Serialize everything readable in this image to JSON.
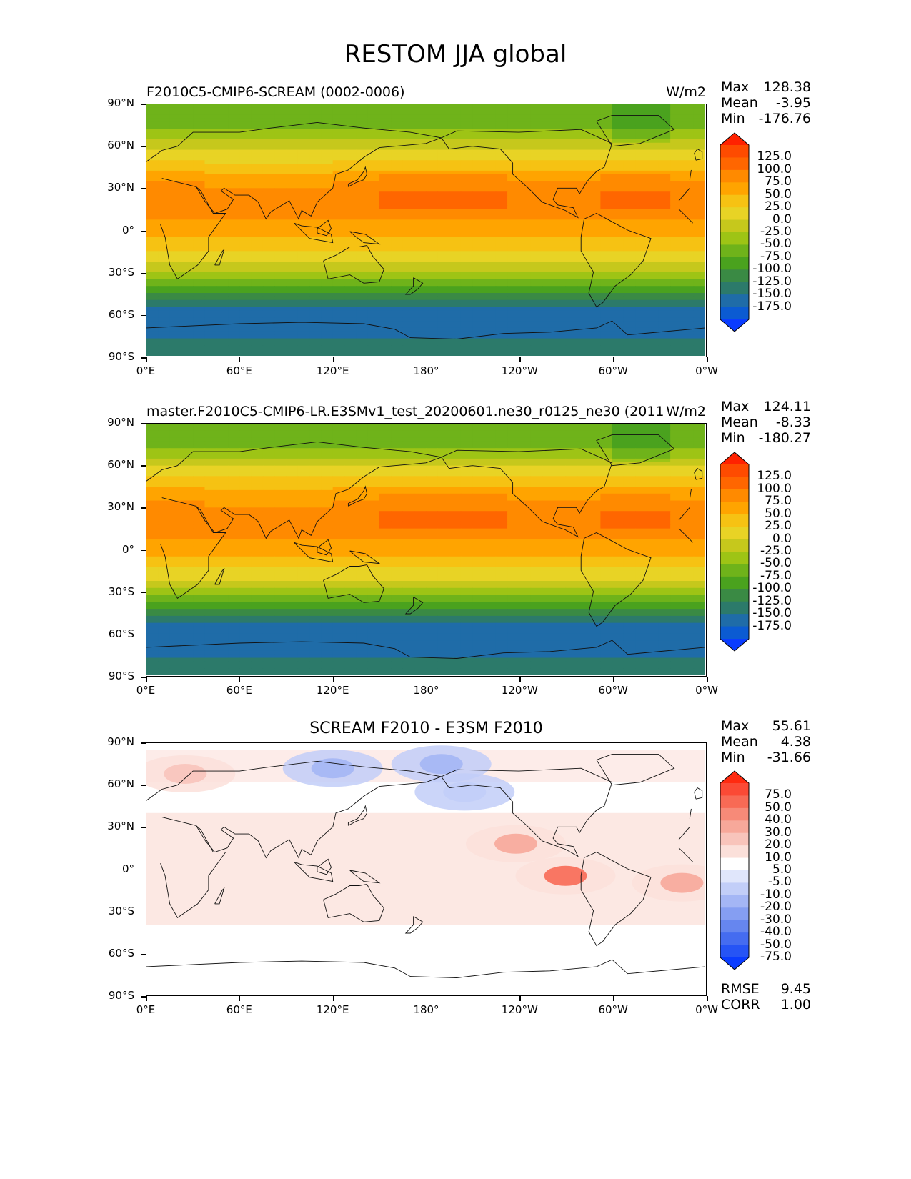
{
  "figure": {
    "title": "RESTOM JJA global"
  },
  "chart_data": [
    {
      "type": "heatmap",
      "title": "F2010C5-CMIP6-SCREAM (0002-0006)",
      "units": "W/m2",
      "stats": {
        "max": "128.38",
        "mean": "-3.95",
        "min": "-176.76"
      },
      "xticks": [
        "0°E",
        "60°E",
        "120°E",
        "180°",
        "120°W",
        "60°W",
        "0°W"
      ],
      "yticks": [
        "90°N",
        "60°N",
        "30°N",
        "0°",
        "30°S",
        "60°S",
        "90°S"
      ],
      "xlim": [
        0,
        360
      ],
      "ylim": [
        -90,
        90
      ],
      "colorbar": {
        "extend": "both",
        "levels": [
          "125.0",
          "100.0",
          "75.0",
          "50.0",
          "25.0",
          "0.0",
          "-25.0",
          "-50.0",
          "-75.0",
          "-100.0",
          "-125.0",
          "-150.0",
          "-175.0"
        ],
        "colors": [
          "#ff2200",
          "#fe4b00",
          "#ff6600",
          "#ff8a00",
          "#ffa400",
          "#f6c213",
          "#e8d325",
          "#c6c81c",
          "#9ec415",
          "#6fb31a",
          "#4aa21e",
          "#3a8a44",
          "#2c7a6a",
          "#1f6ca8",
          "#0b5bd2",
          "#0a3cff"
        ]
      },
      "zonal_profile": {
        "lat": [
          90,
          75,
          60,
          50,
          40,
          30,
          20,
          10,
          0,
          -10,
          -20,
          -30,
          -40,
          -50,
          -60,
          -70,
          -80,
          -90
        ],
        "value": [
          -75,
          -55,
          -10,
          25,
          60,
          85,
          95,
          80,
          60,
          40,
          10,
          -30,
          -80,
          -130,
          -165,
          -170,
          -140,
          -130
        ]
      },
      "lowest_level_name": "",
      "ocean_colored": true
    },
    {
      "type": "heatmap",
      "title": "master.F2010C5-CMIP6-LR.E3SMv1_test_20200601.ne30_r0125_ne30 (2011)",
      "units": "W/m2",
      "stats": {
        "max": "124.11",
        "mean": "-8.33",
        "min": "-180.27"
      },
      "xticks": [
        "0°E",
        "60°E",
        "120°E",
        "180°",
        "120°W",
        "60°W",
        "0°W"
      ],
      "yticks": [
        "90°N",
        "60°N",
        "30°N",
        "0°",
        "30°S",
        "60°S",
        "90°S"
      ],
      "xlim": [
        0,
        360
      ],
      "ylim": [
        -90,
        90
      ],
      "colorbar": {
        "extend": "both",
        "levels": [
          "125.0",
          "100.0",
          "75.0",
          "50.0",
          "25.0",
          "0.0",
          "-25.0",
          "-50.0",
          "-75.0",
          "-100.0",
          "-125.0",
          "-150.0",
          "-175.0"
        ],
        "colors": [
          "#ff2200",
          "#fe4b00",
          "#ff6600",
          "#ff8a00",
          "#ffa400",
          "#f6c213",
          "#e8d325",
          "#c6c81c",
          "#9ec415",
          "#6fb31a",
          "#4aa21e",
          "#3a8a44",
          "#2c7a6a",
          "#1f6ca8",
          "#0b5bd2",
          "#0a3cff"
        ]
      },
      "zonal_profile": {
        "lat": [
          90,
          75,
          60,
          50,
          40,
          30,
          20,
          10,
          0,
          -10,
          -20,
          -30,
          -40,
          -50,
          -60,
          -70,
          -80,
          -90
        ],
        "value": [
          -70,
          -60,
          -5,
          35,
          65,
          85,
          95,
          80,
          60,
          35,
          5,
          -35,
          -85,
          -140,
          -172,
          -170,
          -140,
          -130
        ]
      }
    },
    {
      "type": "heatmap",
      "title": "SCREAM F2010 - E3SM F2010",
      "units": "",
      "stats": {
        "max": "55.61",
        "mean": "4.38",
        "min": "-31.66"
      },
      "metrics": {
        "rmse": "9.45",
        "corr": "1.00"
      },
      "xticks": [
        "0°E",
        "60°E",
        "120°E",
        "180°",
        "120°W",
        "60°W",
        "0°W"
      ],
      "yticks": [
        "90°N",
        "60°N",
        "30°N",
        "0°",
        "30°S",
        "60°S",
        "90°S"
      ],
      "xlim": [
        0,
        360
      ],
      "ylim": [
        -90,
        90
      ],
      "colorbar": {
        "extend": "both",
        "levels": [
          "75.0",
          "50.0",
          "40.0",
          "30.0",
          "20.0",
          "10.0",
          "5.0",
          "-5.0",
          "-10.0",
          "-20.0",
          "-30.0",
          "-40.0",
          "-50.0",
          "-75.0"
        ],
        "colors": [
          "#ff2a10",
          "#fb4a35",
          "#f86a55",
          "#f78a78",
          "#f7a89a",
          "#f8c4bb",
          "#fbe0da",
          "#ffffff",
          "#e0e6fb",
          "#c2cef8",
          "#a4b6f5",
          "#859ef2",
          "#6686ef",
          "#456cf0",
          "#2654f5",
          "#0a3cff"
        ]
      },
      "hotspots": [
        {
          "lon": 238,
          "lat": 18,
          "value": 35
        },
        {
          "lon": 270,
          "lat": -5,
          "value": 50
        },
        {
          "lon": 345,
          "lat": -10,
          "value": 35
        },
        {
          "lon": 25,
          "lat": 68,
          "value": 25
        },
        {
          "lon": 120,
          "lat": 72,
          "value": -15
        },
        {
          "lon": 190,
          "lat": 75,
          "value": -15
        },
        {
          "lon": 205,
          "lat": 55,
          "value": -10
        }
      ]
    }
  ]
}
